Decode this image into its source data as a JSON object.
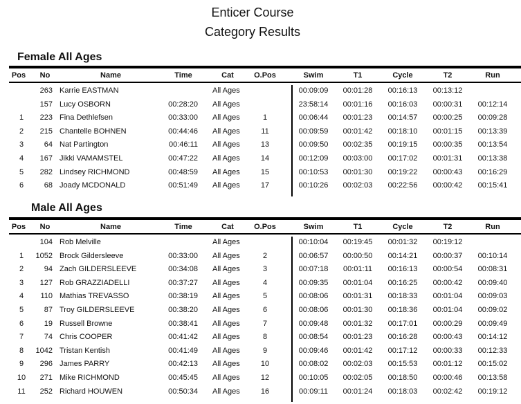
{
  "title": "Enticer Course",
  "subtitle": "Category Results",
  "columns": [
    "Pos",
    "No",
    "Name",
    "Time",
    "Cat",
    "O.Pos",
    "Swim",
    "T1",
    "Cycle",
    "T2",
    "Run"
  ],
  "sections": [
    {
      "heading": "Female All Ages",
      "rows": [
        [
          "",
          "263",
          "Karrie EASTMAN",
          "",
          "All Ages",
          "",
          "00:09:09",
          "00:01:28",
          "00:16:13",
          "00:13:12",
          ""
        ],
        [
          "",
          "157",
          "Lucy OSBORN",
          "00:28:20",
          "All Ages",
          "",
          "23:58:14",
          "00:01:16",
          "00:16:03",
          "00:00:31",
          "00:12:14"
        ],
        [
          "1",
          "223",
          "Fina Dethlefsen",
          "00:33:00",
          "All Ages",
          "1",
          "00:06:44",
          "00:01:23",
          "00:14:57",
          "00:00:25",
          "00:09:28"
        ],
        [
          "2",
          "215",
          "Chantelle BOHNEN",
          "00:44:46",
          "All Ages",
          "11",
          "00:09:59",
          "00:01:42",
          "00:18:10",
          "00:01:15",
          "00:13:39"
        ],
        [
          "3",
          "64",
          "Nat Partington",
          "00:46:11",
          "All Ages",
          "13",
          "00:09:50",
          "00:02:35",
          "00:19:15",
          "00:00:35",
          "00:13:54"
        ],
        [
          "4",
          "167",
          "Jikki VAMAMSTEL",
          "00:47:22",
          "All Ages",
          "14",
          "00:12:09",
          "00:03:00",
          "00:17:02",
          "00:01:31",
          "00:13:38"
        ],
        [
          "5",
          "282",
          "Lindsey RICHMOND",
          "00:48:59",
          "All Ages",
          "15",
          "00:10:53",
          "00:01:30",
          "00:19:22",
          "00:00:43",
          "00:16:29"
        ],
        [
          "6",
          "68",
          "Joady MCDONALD",
          "00:51:49",
          "All Ages",
          "17",
          "00:10:26",
          "00:02:03",
          "00:22:56",
          "00:00:42",
          "00:15:41"
        ]
      ]
    },
    {
      "heading": "Male All Ages",
      "rows": [
        [
          "",
          "104",
          "Rob Melville",
          "",
          "All Ages",
          "",
          "00:10:04",
          "00:19:45",
          "00:01:32",
          "00:19:12",
          ""
        ],
        [
          "1",
          "1052",
          "Brock Gildersleeve",
          "00:33:00",
          "All Ages",
          "2",
          "00:06:57",
          "00:00:50",
          "00:14:21",
          "00:00:37",
          "00:10:14"
        ],
        [
          "2",
          "94",
          "Zach GILDERSLEEVE",
          "00:34:08",
          "All Ages",
          "3",
          "00:07:18",
          "00:01:11",
          "00:16:13",
          "00:00:54",
          "00:08:31"
        ],
        [
          "3",
          "127",
          "Rob GRAZZIADELLI",
          "00:37:27",
          "All Ages",
          "4",
          "00:09:35",
          "00:01:04",
          "00:16:25",
          "00:00:42",
          "00:09:40"
        ],
        [
          "4",
          "110",
          "Mathias TREVASSO",
          "00:38:19",
          "All Ages",
          "5",
          "00:08:06",
          "00:01:31",
          "00:18:33",
          "00:01:04",
          "00:09:03"
        ],
        [
          "5",
          "87",
          "Troy GILDERSLEEVE",
          "00:38:20",
          "All Ages",
          "6",
          "00:08:06",
          "00:01:30",
          "00:18:36",
          "00:01:04",
          "00:09:02"
        ],
        [
          "6",
          "19",
          "Russell Browne",
          "00:38:41",
          "All Ages",
          "7",
          "00:09:48",
          "00:01:32",
          "00:17:01",
          "00:00:29",
          "00:09:49"
        ],
        [
          "7",
          "74",
          "Chris COOPER",
          "00:41:42",
          "All Ages",
          "8",
          "00:08:54",
          "00:01:23",
          "00:16:28",
          "00:00:43",
          "00:14:12"
        ],
        [
          "8",
          "1042",
          "Tristan Kentish",
          "00:41:49",
          "All Ages",
          "9",
          "00:09:46",
          "00:01:42",
          "00:17:12",
          "00:00:33",
          "00:12:33"
        ],
        [
          "9",
          "296",
          "James PARRY",
          "00:42:13",
          "All Ages",
          "10",
          "00:08:02",
          "00:02:03",
          "00:15:53",
          "00:01:12",
          "00:15:02"
        ],
        [
          "10",
          "271",
          "Mike RICHMOND",
          "00:45:45",
          "All Ages",
          "12",
          "00:10:05",
          "00:02:05",
          "00:18:50",
          "00:00:46",
          "00:13:58"
        ],
        [
          "11",
          "252",
          "Richard HOUWEN",
          "00:50:34",
          "All Ages",
          "16",
          "00:09:11",
          "00:01:24",
          "00:18:03",
          "00:02:42",
          "00:19:12"
        ]
      ]
    }
  ]
}
